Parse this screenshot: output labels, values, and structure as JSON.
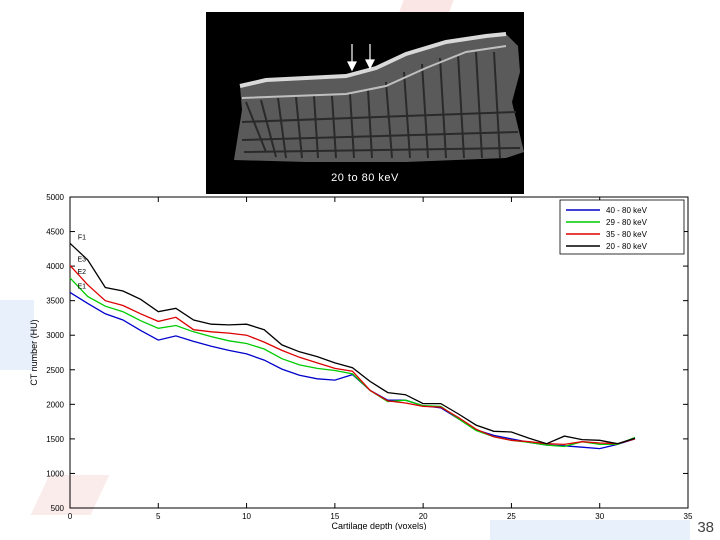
{
  "slide": {
    "page_number": "38"
  },
  "image": {
    "caption": "20 to 80 keV"
  },
  "chart_data": {
    "type": "line",
    "title": "",
    "xlabel": "Cartilage depth (voxels)",
    "ylabel": "CT number (HU)",
    "xlim": [
      0,
      35
    ],
    "ylim": [
      500,
      5000
    ],
    "x_ticks": [
      "0",
      "5",
      "10",
      "15",
      "20",
      "25",
      "30",
      "35"
    ],
    "y_ticks": [
      "500",
      "1000",
      "1500",
      "2000",
      "2500",
      "3000",
      "3500",
      "4000",
      "4500",
      "5000"
    ],
    "x_tick_values": [
      0,
      5,
      10,
      15,
      20,
      25,
      30,
      35
    ],
    "y_tick_values": [
      500,
      1000,
      1500,
      2000,
      2500,
      3000,
      3500,
      4000,
      4500,
      5000
    ],
    "grid": false,
    "legend": "top-right",
    "x": [
      0,
      1,
      2,
      3,
      4,
      5,
      6,
      7,
      8,
      9,
      10,
      11,
      12,
      13,
      14,
      15,
      16,
      17,
      18,
      19,
      20,
      21,
      22,
      23,
      24,
      25,
      26,
      27,
      28,
      29,
      30,
      31,
      32
    ],
    "series": [
      {
        "name": "40 - 80 keV",
        "color": "#0000cc",
        "values": [
          3620,
          3460,
          3310,
          3220,
          3070,
          2930,
          2990,
          2910,
          2840,
          2780,
          2730,
          2640,
          2510,
          2420,
          2370,
          2350,
          2430,
          2200,
          2060,
          2060,
          1980,
          1950,
          1790,
          1630,
          1550,
          1500,
          1450,
          1410,
          1400,
          1380,
          1360,
          1420,
          1500
        ]
      },
      {
        "name": "29 - 80 keV",
        "color": "#00cc00",
        "values": [
          3830,
          3560,
          3420,
          3340,
          3210,
          3100,
          3140,
          3050,
          2980,
          2920,
          2880,
          2800,
          2660,
          2570,
          2520,
          2490,
          2440,
          2200,
          2040,
          2060,
          1980,
          1970,
          1790,
          1620,
          1530,
          1480,
          1450,
          1410,
          1390,
          1460,
          1420,
          1420,
          1520
        ]
      },
      {
        "name": "35 - 80 keV",
        "color": "#dd0000",
        "values": [
          4010,
          3730,
          3500,
          3430,
          3310,
          3200,
          3260,
          3080,
          3050,
          3030,
          3000,
          2900,
          2780,
          2680,
          2600,
          2520,
          2480,
          2200,
          2050,
          2020,
          1970,
          1960,
          1810,
          1640,
          1530,
          1480,
          1460,
          1430,
          1420,
          1460,
          1440,
          1430,
          1500
        ]
      },
      {
        "name": "20 - 80 keV",
        "color": "#000000",
        "values": [
          4330,
          4090,
          3690,
          3640,
          3520,
          3340,
          3390,
          3220,
          3160,
          3150,
          3160,
          3080,
          2860,
          2760,
          2690,
          2600,
          2530,
          2330,
          2170,
          2140,
          2010,
          2010,
          1860,
          1700,
          1610,
          1600,
          1510,
          1430,
          1540,
          1490,
          1480,
          1430,
          1510
        ]
      }
    ],
    "curve_labels": [
      "E1",
      "E2",
      "E3",
      "F1"
    ]
  }
}
